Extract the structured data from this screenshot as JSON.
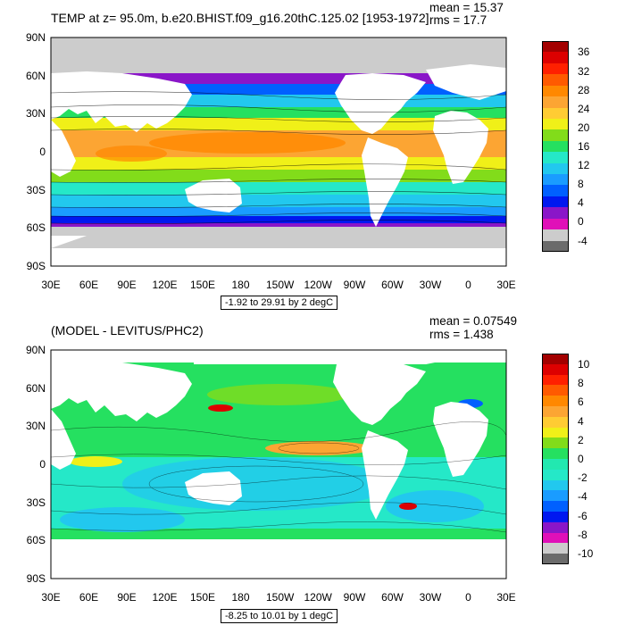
{
  "top_panel": {
    "title": "TEMP at z=  95.0m, b.e20.BHIST.f09_g16.20thC.125.02 [1953-1972]",
    "mean_text": "mean = 15.37",
    "rms_text": "rms = 17.7",
    "info_text": "-1.92 to 29.91 by 2 degC",
    "lat_labels": [
      "90N",
      "60N",
      "30N",
      "0",
      "30S",
      "60S",
      "90S"
    ],
    "lon_labels": [
      "30E",
      "60E",
      "90E",
      "120E",
      "150E",
      "180",
      "150W",
      "120W",
      "90W",
      "60W",
      "30W",
      "0",
      "30E"
    ],
    "colorbar_labels": [
      "36",
      "32",
      "28",
      "24",
      "20",
      "16",
      "12",
      "8",
      "4",
      "0",
      "-4"
    ],
    "colors": [
      "#6b6b6b",
      "#cccccc",
      "#e010b8",
      "#8a16c8",
      "#0018f0",
      "#0060ff",
      "#1a9cff",
      "#22c8ee",
      "#25e8c8",
      "#25e060",
      "#82dc1a",
      "#f0f018",
      "#ffcc33",
      "#fca533",
      "#ff8800",
      "#ff5a00",
      "#ff2000",
      "#dd0000",
      "#a30000"
    ]
  },
  "bottom_panel": {
    "title": "(MODEL - LEVITUS/PHC2)",
    "mean_text": "mean = 0.07549",
    "rms_text": "rms = 1.438",
    "info_text": "-8.25 to 10.01 by 1 degC",
    "lat_labels": [
      "90N",
      "60N",
      "30N",
      "0",
      "30S",
      "60S",
      "90S"
    ],
    "lon_labels": [
      "30E",
      "60E",
      "90E",
      "120E",
      "150E",
      "180",
      "150W",
      "120W",
      "90W",
      "60W",
      "30W",
      "0",
      "30E"
    ],
    "colorbar_labels": [
      "10",
      "8",
      "6",
      "4",
      "2",
      "0",
      "-2",
      "-4",
      "-6",
      "-8",
      "-10"
    ],
    "colors": [
      "#6b6b6b",
      "#cccccc",
      "#e010b8",
      "#8a16c8",
      "#0018f0",
      "#0060ff",
      "#1a9cff",
      "#22c8ee",
      "#25e8c8",
      "#22e8b0",
      "#25e060",
      "#82dc1a",
      "#f0f018",
      "#ffcc33",
      "#fca533",
      "#ff8800",
      "#ff5a00",
      "#ff2000",
      "#dd0000",
      "#a30000"
    ]
  }
}
